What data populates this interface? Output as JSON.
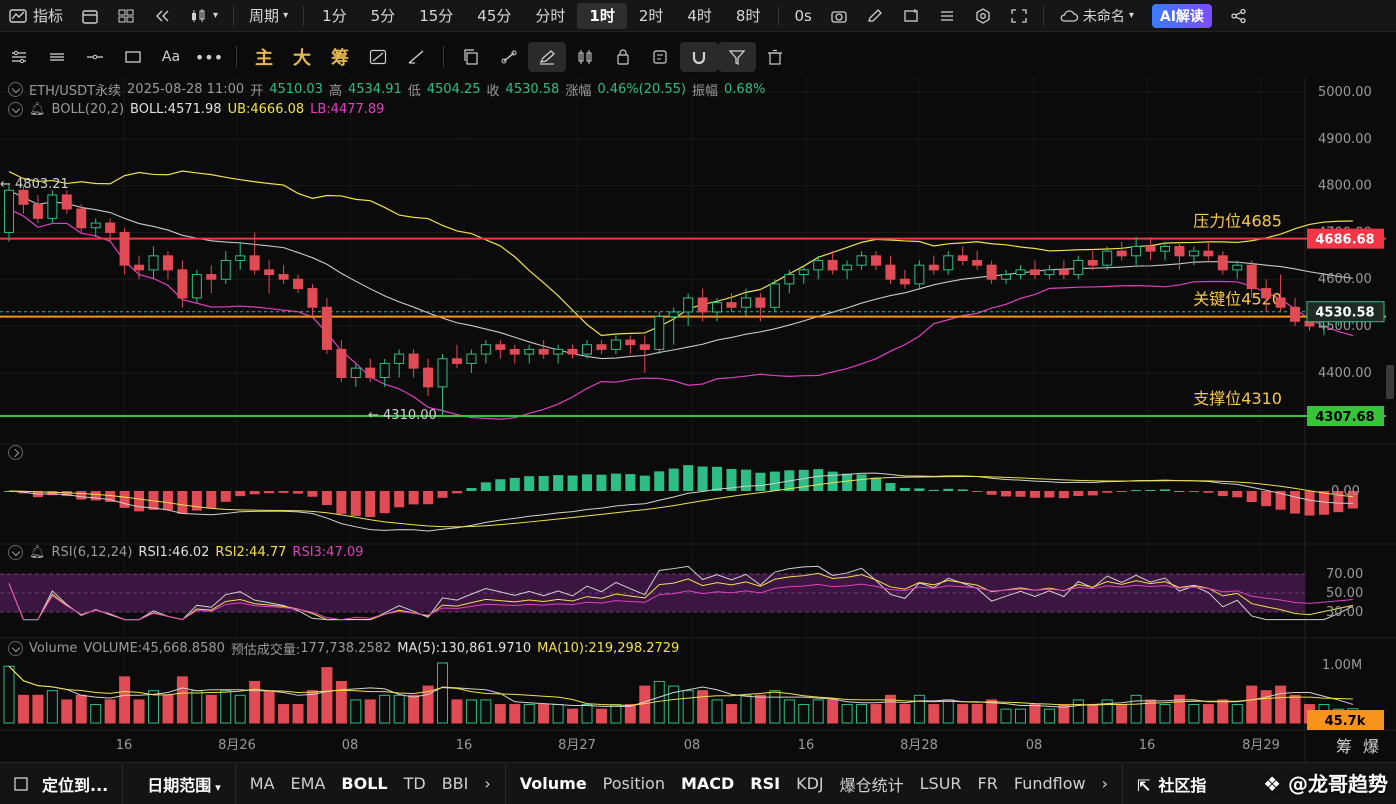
{
  "topbar": {
    "indicators": "指标",
    "period": "周期",
    "timeframes": [
      "1分",
      "5分",
      "15分",
      "45分",
      "分时",
      "1时",
      "2时",
      "4时",
      "8时"
    ],
    "active_timeframe": "1时",
    "countdown": "0s",
    "layout_name": "未命名",
    "ai_label": "AI解读"
  },
  "drawbar": {
    "main": "主",
    "big": "大",
    "chips": "筹"
  },
  "header": {
    "symbol": "ETH/USDT永续",
    "datetime": "2025-08-28 11:00",
    "open_label": "开",
    "open": "4510.03",
    "high_label": "高",
    "high": "4534.91",
    "low_label": "低",
    "low": "4504.25",
    "close_label": "收",
    "close": "4530.58",
    "change_label": "涨幅",
    "change": "0.46%(20.55)",
    "amp_label": "振幅",
    "amp": "0.68%"
  },
  "boll": {
    "label": "BOLL(20,2)",
    "mid": "BOLL:4571.98",
    "ub": "UB:4666.08",
    "lb": "LB:4477.89"
  },
  "rsi": {
    "label": "RSI(6,12,24)",
    "rsi1": "RSI1:46.02",
    "rsi2": "RSI2:44.77",
    "rsi3": "RSI3:47.09"
  },
  "volume": {
    "label": "Volume",
    "volume": "VOLUME:45,668.8580",
    "est_label": "预估成交量:",
    "est": "177,738.2582",
    "ma5": "MA(5):130,861.9710",
    "ma10": "MA(10):219,298.2729"
  },
  "annotations": {
    "resistance": "压力位4685",
    "key": "关键位4520",
    "support": "支撑位4310",
    "high_marker": "← 4803.21",
    "low_marker": "← 4310.00"
  },
  "price_tags": {
    "resistance": "4686.68",
    "current": "4530.58",
    "support": "4307.68",
    "volume": "45.7k"
  },
  "colors": {
    "up": "#2ebd85",
    "down": "#e04b55",
    "boll_ub": "#f0e04a",
    "boll_mid": "#c8c8c8",
    "boll_lb": "#e040c0",
    "resistance": "#f23645",
    "key": "#f7931a",
    "support": "#36c43a"
  },
  "chart_data": {
    "type": "candlestick",
    "title": "ETH/USDT永续",
    "price_axis": {
      "ticks": [
        "5000.00",
        "4900.00",
        "4800.00",
        "4700.00",
        "4600.00",
        "4500.00",
        "4400.00"
      ],
      "ylim": [
        4250,
        5030
      ]
    },
    "time_axis": {
      "ticks": [
        "16",
        "8月26",
        "08",
        "16",
        "8月27",
        "08",
        "16",
        "8月28",
        "08",
        "16",
        "8月29"
      ]
    },
    "levels": [
      {
        "label": "压力位4685",
        "value": 4686.68
      },
      {
        "label": "关键位4520",
        "value": 4520
      },
      {
        "label": "支撑位4310",
        "value": 4307.68
      }
    ],
    "candles": [
      [
        4700,
        4803,
        4680,
        4790
      ],
      [
        4790,
        4800,
        4740,
        4760
      ],
      [
        4760,
        4780,
        4720,
        4730
      ],
      [
        4730,
        4790,
        4720,
        4780
      ],
      [
        4780,
        4790,
        4740,
        4750
      ],
      [
        4750,
        4760,
        4700,
        4710
      ],
      [
        4710,
        4730,
        4690,
        4720
      ],
      [
        4720,
        4730,
        4680,
        4700
      ],
      [
        4700,
        4710,
        4610,
        4630
      ],
      [
        4630,
        4650,
        4600,
        4620
      ],
      [
        4620,
        4670,
        4600,
        4650
      ],
      [
        4650,
        4660,
        4600,
        4620
      ],
      [
        4620,
        4640,
        4540,
        4560
      ],
      [
        4560,
        4620,
        4550,
        4610
      ],
      [
        4610,
        4630,
        4570,
        4600
      ],
      [
        4600,
        4660,
        4590,
        4640
      ],
      [
        4640,
        4680,
        4620,
        4650
      ],
      [
        4650,
        4700,
        4610,
        4620
      ],
      [
        4620,
        4640,
        4570,
        4610
      ],
      [
        4610,
        4630,
        4590,
        4600
      ],
      [
        4600,
        4610,
        4570,
        4580
      ],
      [
        4580,
        4590,
        4520,
        4540
      ],
      [
        4540,
        4560,
        4440,
        4450
      ],
      [
        4450,
        4470,
        4380,
        4390
      ],
      [
        4390,
        4420,
        4370,
        4410
      ],
      [
        4410,
        4430,
        4380,
        4390
      ],
      [
        4390,
        4430,
        4370,
        4420
      ],
      [
        4420,
        4450,
        4390,
        4440
      ],
      [
        4440,
        4450,
        4390,
        4410
      ],
      [
        4410,
        4430,
        4350,
        4370
      ],
      [
        4370,
        4440,
        4310,
        4430
      ],
      [
        4430,
        4460,
        4410,
        4420
      ],
      [
        4420,
        4450,
        4400,
        4440
      ],
      [
        4440,
        4470,
        4420,
        4460
      ],
      [
        4460,
        4470,
        4430,
        4450
      ],
      [
        4450,
        4460,
        4420,
        4440
      ],
      [
        4440,
        4460,
        4420,
        4450
      ],
      [
        4450,
        4470,
        4430,
        4440
      ],
      [
        4440,
        4460,
        4420,
        4450
      ],
      [
        4450,
        4460,
        4430,
        4440
      ],
      [
        4440,
        4470,
        4430,
        4460
      ],
      [
        4460,
        4470,
        4440,
        4450
      ],
      [
        4450,
        4480,
        4440,
        4470
      ],
      [
        4470,
        4480,
        4440,
        4460
      ],
      [
        4460,
        4480,
        4400,
        4450
      ],
      [
        4450,
        4530,
        4440,
        4520
      ],
      [
        4520,
        4540,
        4460,
        4530
      ],
      [
        4530,
        4570,
        4500,
        4560
      ],
      [
        4560,
        4580,
        4510,
        4530
      ],
      [
        4530,
        4560,
        4510,
        4550
      ],
      [
        4550,
        4570,
        4530,
        4540
      ],
      [
        4540,
        4580,
        4520,
        4560
      ],
      [
        4560,
        4570,
        4510,
        4540
      ],
      [
        4540,
        4600,
        4530,
        4590
      ],
      [
        4590,
        4620,
        4570,
        4610
      ],
      [
        4610,
        4630,
        4590,
        4620
      ],
      [
        4620,
        4650,
        4600,
        4640
      ],
      [
        4640,
        4660,
        4610,
        4620
      ],
      [
        4620,
        4640,
        4600,
        4630
      ],
      [
        4630,
        4660,
        4620,
        4650
      ],
      [
        4650,
        4660,
        4620,
        4630
      ],
      [
        4630,
        4650,
        4590,
        4600
      ],
      [
        4600,
        4620,
        4580,
        4590
      ],
      [
        4590,
        4640,
        4580,
        4630
      ],
      [
        4630,
        4650,
        4610,
        4620
      ],
      [
        4620,
        4660,
        4610,
        4650
      ],
      [
        4650,
        4670,
        4630,
        4640
      ],
      [
        4640,
        4660,
        4620,
        4630
      ],
      [
        4630,
        4640,
        4590,
        4600
      ],
      [
        4600,
        4620,
        4590,
        4610
      ],
      [
        4610,
        4630,
        4600,
        4620
      ],
      [
        4620,
        4640,
        4600,
        4610
      ],
      [
        4610,
        4630,
        4600,
        4620
      ],
      [
        4620,
        4640,
        4600,
        4610
      ],
      [
        4610,
        4650,
        4600,
        4640
      ],
      [
        4640,
        4660,
        4620,
        4630
      ],
      [
        4630,
        4670,
        4620,
        4660
      ],
      [
        4660,
        4680,
        4640,
        4650
      ],
      [
        4650,
        4690,
        4630,
        4670
      ],
      [
        4670,
        4690,
        4640,
        4660
      ],
      [
        4660,
        4680,
        4640,
        4670
      ],
      [
        4670,
        4680,
        4620,
        4650
      ],
      [
        4650,
        4670,
        4630,
        4660
      ],
      [
        4660,
        4680,
        4640,
        4650
      ],
      [
        4650,
        4660,
        4610,
        4620
      ],
      [
        4620,
        4640,
        4600,
        4630
      ],
      [
        4630,
        4640,
        4560,
        4580
      ],
      [
        4580,
        4600,
        4530,
        4560
      ],
      [
        4560,
        4610,
        4530,
        4540
      ],
      [
        4540,
        4560,
        4500,
        4510
      ],
      [
        4510,
        4530,
        4490,
        4500
      ],
      [
        4500,
        4520,
        4480,
        4510
      ],
      [
        4510,
        4530,
        4500,
        4520
      ],
      [
        4510,
        4535,
        4504,
        4530
      ]
    ]
  }
}
